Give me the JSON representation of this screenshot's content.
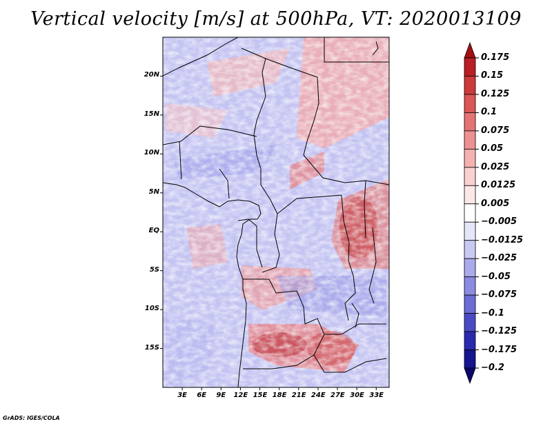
{
  "title": "Vertical velocity [m/s] at 500hPa, VT: 2020013109",
  "credit": "GrADS: IGES/COLA",
  "map": {
    "lon_range": [
      0,
      35
    ],
    "lat_range": [
      -20,
      25
    ],
    "lat_ticks": [
      {
        "label": "20N",
        "lat": 20
      },
      {
        "label": "15N",
        "lat": 15
      },
      {
        "label": "10N",
        "lat": 10
      },
      {
        "label": "5N",
        "lat": 5
      },
      {
        "label": "EQ",
        "lat": 0
      },
      {
        "label": "5S",
        "lat": -5
      },
      {
        "label": "10S",
        "lat": -10
      },
      {
        "label": "15S",
        "lat": -15
      }
    ],
    "lon_ticks": [
      {
        "label": "3E",
        "lon": 3
      },
      {
        "label": "6E",
        "lon": 6
      },
      {
        "label": "9E",
        "lon": 9
      },
      {
        "label": "12E",
        "lon": 12
      },
      {
        "label": "15E",
        "lon": 15
      },
      {
        "label": "18E",
        "lon": 18
      },
      {
        "label": "21E",
        "lon": 21
      },
      {
        "label": "24E",
        "lon": 24
      },
      {
        "label": "27E",
        "lon": 27
      },
      {
        "label": "30E",
        "lon": 30
      },
      {
        "label": "33E",
        "lon": 33
      }
    ]
  },
  "colorbar": {
    "levels": [
      "0.175",
      "0.15",
      "0.125",
      "0.1",
      "0.075",
      "0.05",
      "0.025",
      "0.0125",
      "0.005",
      "−0.005",
      "−0.0125",
      "−0.025",
      "−0.05",
      "−0.075",
      "−0.1",
      "−0.125",
      "−0.175",
      "−0.2"
    ],
    "colors": [
      "#a50f15",
      "#bb1e25",
      "#cd3a3a",
      "#db5656",
      "#e67373",
      "#ee9191",
      "#f5b0b0",
      "#fad0d0",
      "#fde8e8",
      "#ffffff",
      "#e6e6fb",
      "#c9c9f4",
      "#aaaaec",
      "#8b8be2",
      "#6c6cd6",
      "#4a4ac5",
      "#2a2ab0",
      "#15158f",
      "#08086a"
    ]
  }
}
